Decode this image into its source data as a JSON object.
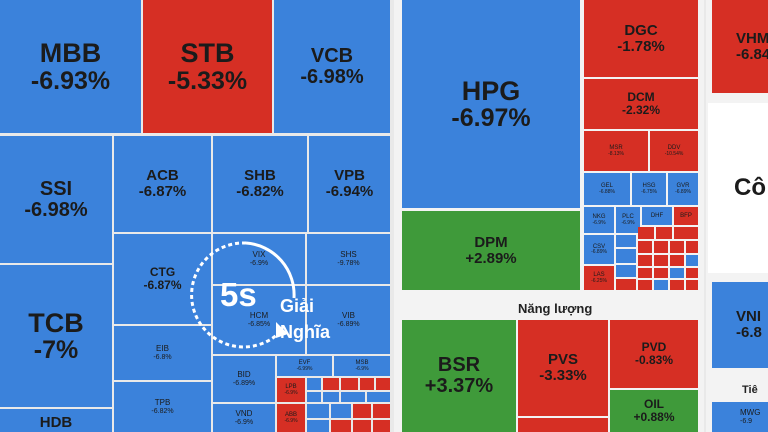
{
  "tiles": {
    "mbb": {
      "sym": "MBB",
      "pct": "-6.93%"
    },
    "stb": {
      "sym": "STB",
      "pct": "-5.33%"
    },
    "vcb": {
      "sym": "VCB",
      "pct": "-6.98%"
    },
    "ssi": {
      "sym": "SSI",
      "pct": "-6.98%"
    },
    "acb": {
      "sym": "ACB",
      "pct": "-6.87%"
    },
    "shb": {
      "sym": "SHB",
      "pct": "-6.82%"
    },
    "vpb": {
      "sym": "VPB",
      "pct": "-6.94%"
    },
    "tcb": {
      "sym": "TCB",
      "pct": "-7%"
    },
    "ctg": {
      "sym": "CTG",
      "pct": "-6.87%"
    },
    "vix": {
      "sym": "VIX",
      "pct": "-6.9%"
    },
    "shs": {
      "sym": "SHS",
      "pct": "-9.78%"
    },
    "hcm": {
      "sym": "HCM",
      "pct": "-6.85%"
    },
    "vib": {
      "sym": "VIB",
      "pct": "-6.89%"
    },
    "eib": {
      "sym": "EIB",
      "pct": "-6.8%"
    },
    "bid": {
      "sym": "BID",
      "pct": "-6.89%"
    },
    "evf": {
      "sym": "EVF",
      "pct": "-6.99%"
    },
    "msb": {
      "sym": "MSB",
      "pct": "-6.9%"
    },
    "tpb": {
      "sym": "TPB",
      "pct": "-6.82%"
    },
    "vnd": {
      "sym": "VND",
      "pct": "-6.9%"
    },
    "lpb": {
      "sym": "LPB",
      "pct": "-6.9%"
    },
    "abb": {
      "sym": "ABB",
      "pct": "-6.9%"
    },
    "hdb": {
      "sym": "HDB",
      "pct": ""
    },
    "hpg": {
      "sym": "HPG",
      "pct": "-6.97%"
    },
    "dgc": {
      "sym": "DGC",
      "pct": "-1.78%"
    },
    "dcm": {
      "sym": "DCM",
      "pct": "-2.32%"
    },
    "msr": {
      "sym": "MSR",
      "pct": "-8.13%"
    },
    "ddv": {
      "sym": "DDV",
      "pct": "-10.54%"
    },
    "gel": {
      "sym": "GEL",
      "pct": "-6.88%"
    },
    "hsg": {
      "sym": "HSG",
      "pct": "-6.75%"
    },
    "gvr": {
      "sym": "GVR",
      "pct": "-6.89%"
    },
    "nkg": {
      "sym": "NKG",
      "pct": "-6.9%"
    },
    "plc": {
      "sym": "PLC",
      "pct": "-6.9%"
    },
    "dhf": {
      "sym": "DHF",
      "pct": "-6.9%"
    },
    "bfp": {
      "sym": "BFP",
      "pct": "-6.9%"
    },
    "csv": {
      "sym": "CSV",
      "pct": "-6.89%"
    },
    "las": {
      "sym": "LAS",
      "pct": "-6.25%"
    },
    "dpm": {
      "sym": "DPM",
      "pct": "+2.89%"
    },
    "bsr": {
      "sym": "BSR",
      "pct": "+3.37%"
    },
    "pvs": {
      "sym": "PVS",
      "pct": "-3.33%"
    },
    "pvd": {
      "sym": "PVD",
      "pct": "-0.83%"
    },
    "oil": {
      "sym": "OIL",
      "pct": "+0.88%"
    },
    "vhm": {
      "sym": "VHM",
      "pct": "-6.84"
    },
    "vnm": {
      "sym": "VNI",
      "pct": "-6.8"
    },
    "mwg": {
      "sym": "MWG",
      "pct": "-6.9"
    }
  },
  "sectors": {
    "energy": "Năng lượng",
    "consumer_partial": "Cô",
    "retail_partial": "Tiê"
  },
  "logo": {
    "badge": "5s",
    "line1": "Giải",
    "line2": "Nghĩa"
  },
  "colors": {
    "down": "#3b82db",
    "loss": "#d62f24",
    "gain": "#3f9a3a"
  }
}
